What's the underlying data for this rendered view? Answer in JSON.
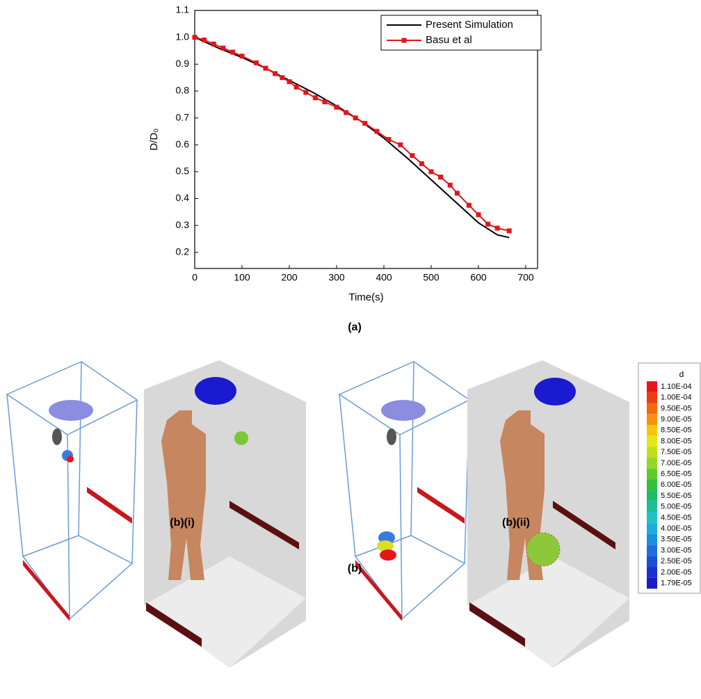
{
  "chart_data": {
    "type": "line",
    "xlabel": "Time(s)",
    "ylabel": "D/D₀",
    "xlim": [
      0,
      725
    ],
    "ylim": [
      0.14,
      1.1
    ],
    "xticks": [
      0,
      100,
      200,
      300,
      400,
      500,
      600,
      700
    ],
    "yticks": [
      0.2,
      0.3,
      0.4,
      0.5,
      0.6,
      0.7,
      0.8,
      0.9,
      {
        "value": 1,
        "label": "1.0"
      },
      1.1
    ],
    "legend": "upper right",
    "series": [
      {
        "name": "Present Simulation",
        "color": "#000000",
        "marker": false,
        "x": [
          0,
          50,
          100,
          150,
          200,
          250,
          300,
          350,
          400,
          450,
          500,
          550,
          600,
          640,
          665
        ],
        "values": [
          1.0,
          0.96,
          0.925,
          0.885,
          0.84,
          0.795,
          0.745,
          0.69,
          0.625,
          0.55,
          0.47,
          0.39,
          0.31,
          0.265,
          0.255
        ]
      },
      {
        "name": "Basu et al",
        "color": "#e3141b",
        "marker": true,
        "x": [
          0,
          20,
          40,
          60,
          80,
          100,
          130,
          150,
          170,
          185,
          200,
          215,
          235,
          255,
          275,
          300,
          320,
          340,
          360,
          385,
          410,
          435,
          460,
          480,
          500,
          520,
          540,
          555,
          580,
          600,
          620,
          640,
          665
        ],
        "values": [
          1.0,
          0.99,
          0.975,
          0.96,
          0.945,
          0.93,
          0.905,
          0.885,
          0.865,
          0.85,
          0.835,
          0.815,
          0.795,
          0.775,
          0.76,
          0.74,
          0.72,
          0.7,
          0.68,
          0.65,
          0.62,
          0.6,
          0.56,
          0.53,
          0.5,
          0.48,
          0.45,
          0.42,
          0.375,
          0.34,
          0.305,
          0.29,
          0.28
        ]
      }
    ]
  },
  "captions": {
    "a": "(a)",
    "b_i": "(b)(i)",
    "b_ii": "(b)(ii)",
    "b": "(b)"
  },
  "colorbar": {
    "title": "d",
    "labels": [
      "1.10E-04",
      "1.00E-04",
      "9.50E-05",
      "9.00E-05",
      "8.50E-05",
      "8.00E-05",
      "7.50E-05",
      "7.00E-05",
      "6.50E-05",
      "6.00E-05",
      "5.50E-05",
      "5.00E-05",
      "4.50E-05",
      "4.00E-05",
      "3.50E-05",
      "3.00E-05",
      "2.50E-05",
      "2.00E-05",
      "1.79E-05"
    ],
    "colors": [
      "#e8151b",
      "#ee3d12",
      "#f46a0c",
      "#f7930a",
      "#f4c60c",
      "#e6e714",
      "#bfe01c",
      "#94d724",
      "#5fcb2b",
      "#31c03a",
      "#1ebd6a",
      "#1cbf98",
      "#1cc4c8",
      "#1aaee0",
      "#1a8fe0",
      "#1a6fdb",
      "#1a4fd6",
      "#1a31cf",
      "#1a1acc"
    ]
  }
}
